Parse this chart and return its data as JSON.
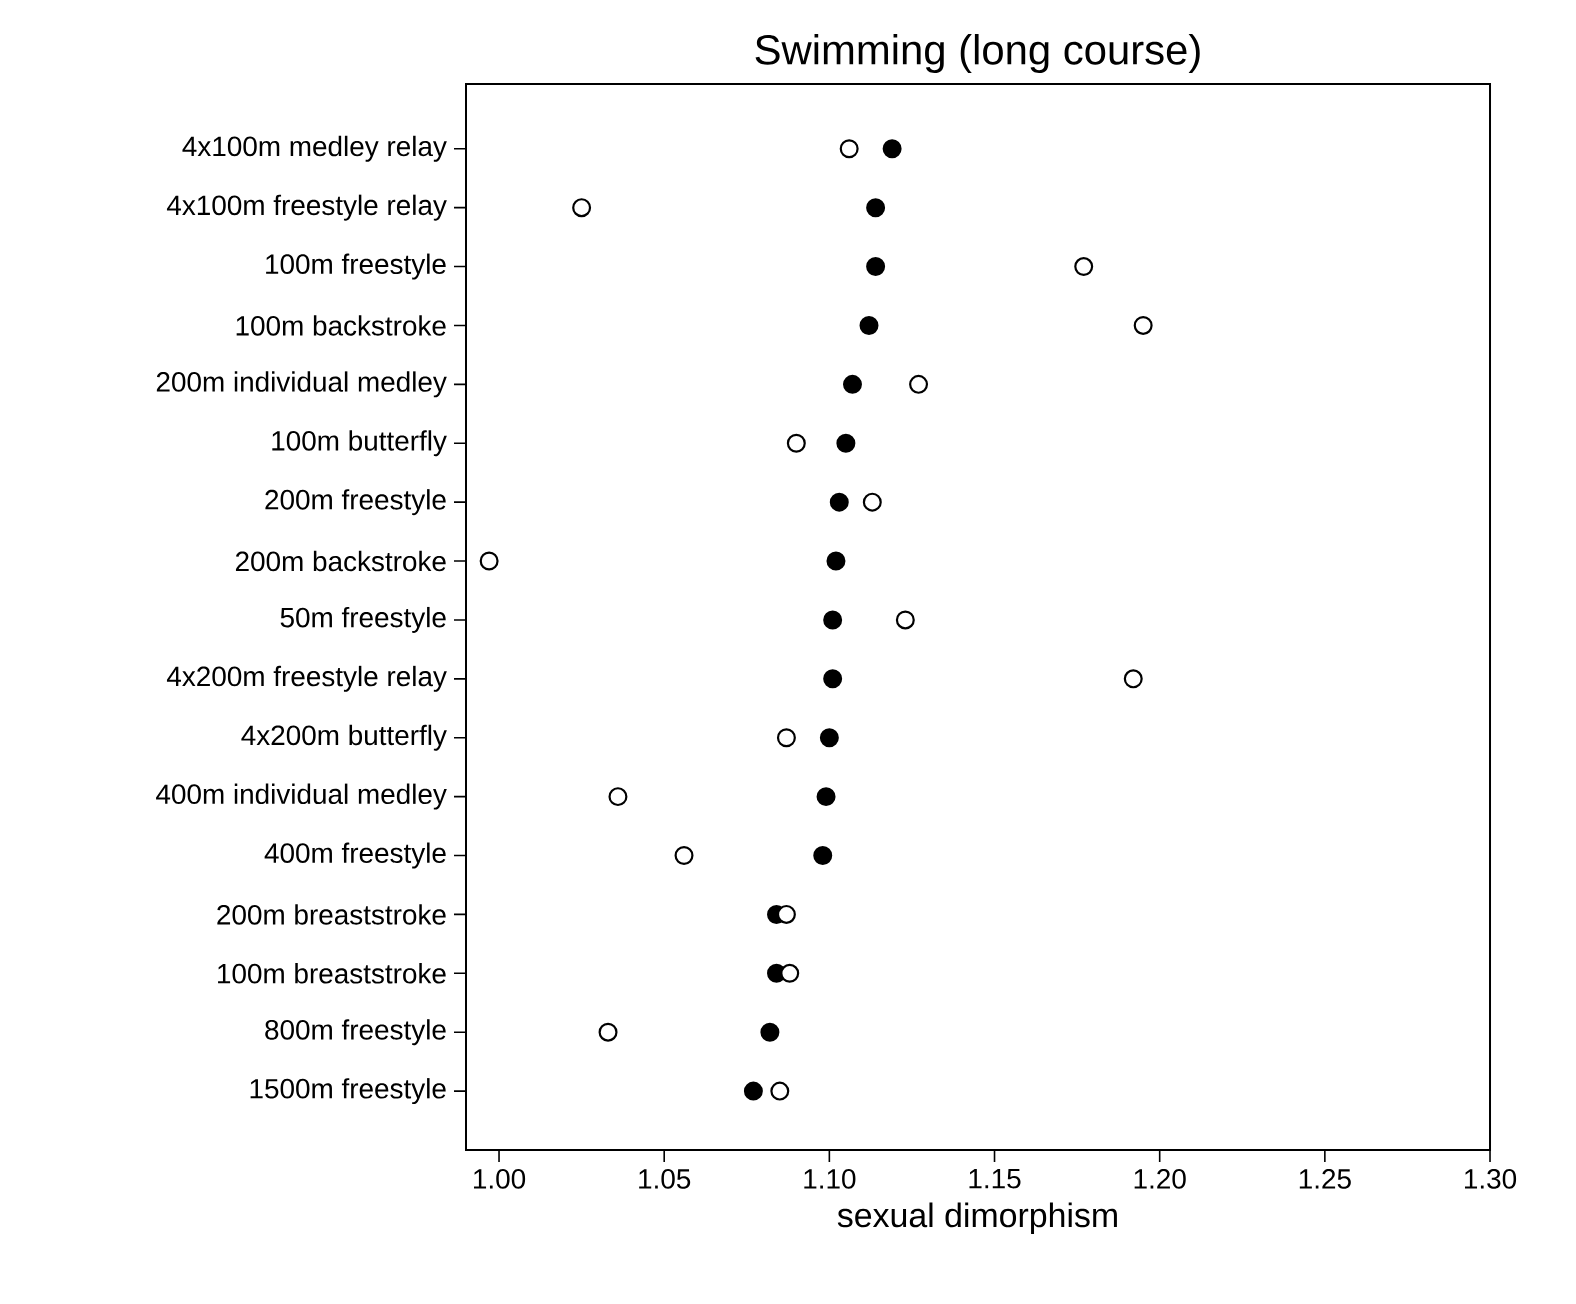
{
  "chart_data": {
    "type": "scatter",
    "title": "Swimming (long course)",
    "xlabel": "sexual dimorphism",
    "orientation": "horizontal",
    "categories": [
      "4x100m medley relay",
      "4x100m freestyle relay",
      "100m freestyle",
      "100m backstroke",
      "200m individual medley",
      "100m butterfly",
      "200m freestyle",
      "200m backstroke",
      "50m freestyle",
      "4x200m freestyle relay",
      "4x200m butterfly",
      "400m individual medley",
      "400m freestyle",
      "200m breaststroke",
      "100m breaststroke",
      "800m freestyle",
      "1500m freestyle"
    ],
    "series": [
      {
        "color": "#000000",
        "values": [
          1.119,
          1.114,
          1.114,
          1.112,
          1.107,
          1.105,
          1.103,
          1.102,
          1.101,
          1.101,
          1.1,
          1.099,
          1.098,
          1.084,
          1.084,
          1.082,
          1.077
        ]
      },
      {
        "color": "#ffffff",
        "values": [
          1.106,
          1.025,
          1.177,
          1.195,
          1.127,
          1.09,
          1.113,
          0.997,
          1.123,
          1.192,
          1.087,
          1.036,
          1.056,
          1.087,
          1.088,
          1.033,
          1.085
        ]
      }
    ],
    "xlim": [
      0.99,
      1.3
    ],
    "xticks": [
      {
        "value": 1.0,
        "label": "1.00"
      },
      {
        "value": 1.05,
        "label": "1.05"
      },
      {
        "value": 1.1,
        "label": "1.10"
      },
      {
        "value": 1.15,
        "label": "1.15"
      },
      {
        "value": 1.2,
        "label": "1.20"
      },
      {
        "value": 1.25,
        "label": "1.25"
      },
      {
        "value": 1.3,
        "label": "1.30"
      }
    ],
    "marker": "circle",
    "grid": false
  }
}
